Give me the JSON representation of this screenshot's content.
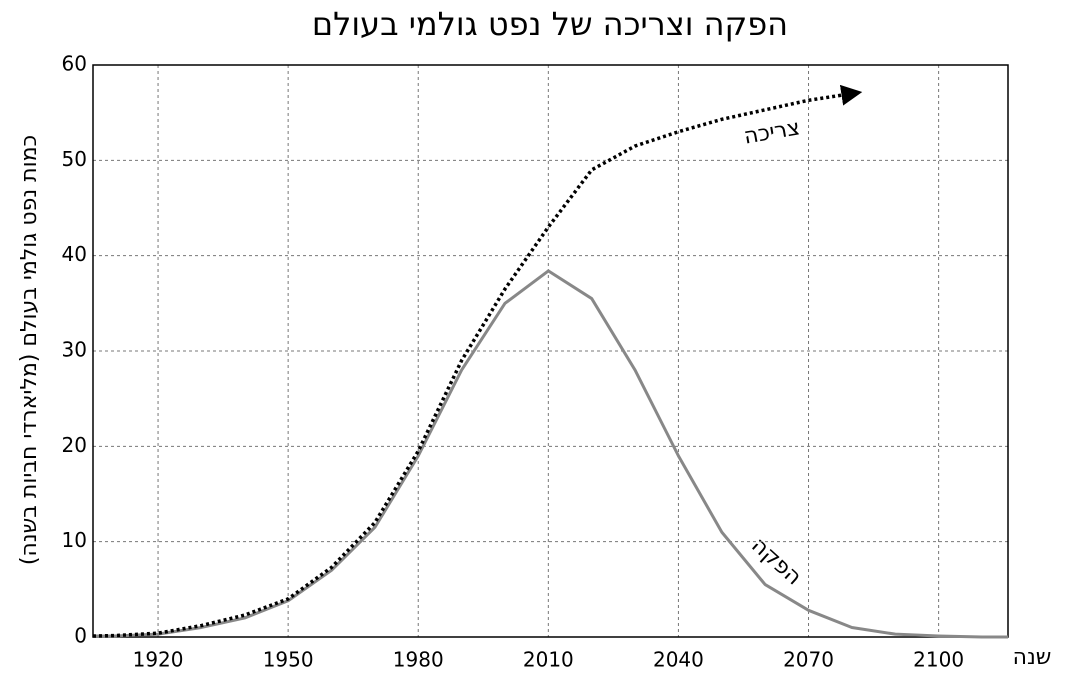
{
  "chart_data": {
    "type": "line",
    "title": "הפקה וצריכה של נפט גולמי בעולם",
    "y_label": "כמות נפט גולמי בעולם (מליארדי חביות בשנה)",
    "x_label": "שנה",
    "annotations": [
      "צריכה",
      "הפקה"
    ],
    "x": [
      1905,
      1910,
      1920,
      1930,
      1940,
      1950,
      1960,
      1970,
      1980,
      1990,
      2000,
      2010,
      2020,
      2030,
      2040,
      2050,
      2060,
      2070,
      2080,
      2090,
      2100,
      2110,
      2116
    ],
    "series": [
      {
        "name": "הפקה",
        "color": "#888888",
        "style": "solid",
        "values": [
          0.1,
          0.1,
          0.3,
          1,
          2,
          3.8,
          7,
          11.5,
          19,
          28,
          35,
          38.4,
          35.5,
          28,
          19,
          11,
          5.5,
          2.8,
          1,
          0.3,
          0.1,
          0,
          0
        ]
      },
      {
        "name": "צריכה",
        "color": "#000000",
        "style": "dotted",
        "values": [
          0.1,
          0.15,
          0.4,
          1.2,
          2.3,
          4,
          7.3,
          12,
          19.5,
          29,
          36.5,
          43,
          49,
          51.5,
          53,
          54.3,
          55.3,
          56.3,
          57,
          null,
          null,
          null,
          null
        ]
      }
    ],
    "xlim": [
      1905,
      2116
    ],
    "ylim": [
      0,
      60
    ],
    "xticks": [
      1920,
      1950,
      1980,
      2010,
      2040,
      2070,
      2100
    ],
    "yticks": [
      0,
      10,
      20,
      30,
      40,
      50,
      60
    ],
    "grid": true
  }
}
